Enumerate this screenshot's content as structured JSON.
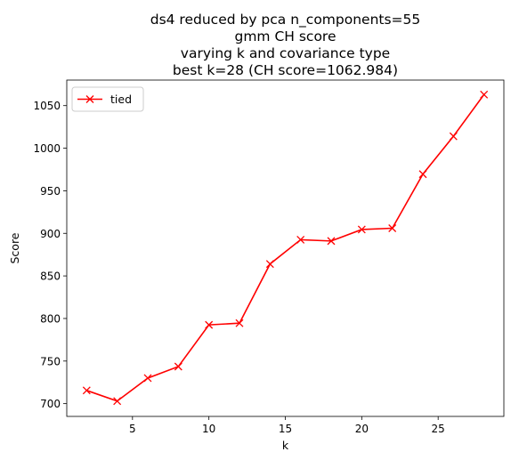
{
  "chart_data": {
    "type": "line",
    "title": [
      "ds4 reduced by pca n_components=55",
      "gmm CH score",
      "varying k and covariance type",
      "best k=28 (CH score=1062.984)"
    ],
    "xlabel": "k",
    "ylabel": "Score",
    "xlim": [
      0.7,
      29.3
    ],
    "ylim": [
      685,
      1080
    ],
    "xticks": [
      5,
      10,
      15,
      20,
      25
    ],
    "yticks": [
      700,
      750,
      800,
      850,
      900,
      950,
      1000,
      1050
    ],
    "grid": false,
    "legend_position": "top-left",
    "series": [
      {
        "name": "tied",
        "color": "#ff0000",
        "marker": "x",
        "x": [
          2,
          4,
          6,
          8,
          10,
          12,
          14,
          16,
          18,
          20,
          22,
          24,
          26,
          28
        ],
        "y": [
          715.5,
          703.0,
          730.0,
          743.5,
          792.5,
          794.5,
          864.0,
          892.5,
          891.0,
          904.5,
          906.0,
          969.5,
          1014.0,
          1062.984
        ]
      }
    ]
  }
}
